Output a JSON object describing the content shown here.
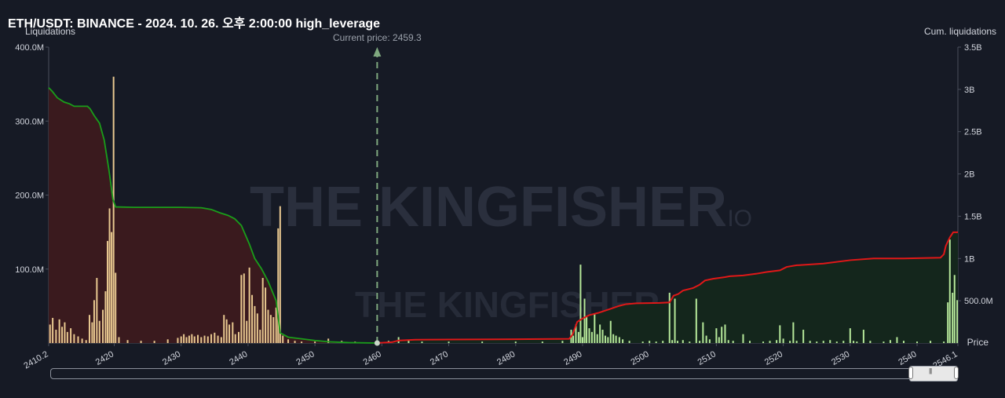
{
  "title": "ETH/USDT: BINANCE - 2024. 10. 26. 오후 2:00:00 high_leverage",
  "watermark": {
    "brand": "THE KINGFISHER",
    "suffix": ".IO"
  },
  "colors": {
    "background": "#161a25",
    "short_cum_line": "#1a9e1a",
    "short_cum_fill": "#3a1a1e",
    "long_cum_line": "#e01818",
    "long_cum_fill": "#14261c",
    "bar_left": "#e8c890",
    "bar_right": "#b6e89a",
    "current_price_line": "#7fa87f"
  },
  "chart_data": {
    "type": "bar",
    "title": "ETH/USDT: BINANCE - 2024. 10. 26. 오후 2:00:00 high_leverage",
    "ylabel_left": "Liquidations",
    "ylabel_right": "Cum. liquidations",
    "xlabel": "Price",
    "xlim": [
      2410.2,
      2546.1
    ],
    "ylim_left": [
      0,
      400000000
    ],
    "ylim_right": [
      0,
      3500000000
    ],
    "x_ticks": [
      "2410.2",
      "2420",
      "2430",
      "2440",
      "2450",
      "2460",
      "2470",
      "2480",
      "2490",
      "2500",
      "2510",
      "2520",
      "2530",
      "2540",
      "2546.1"
    ],
    "y_ticks_left": [
      "400.0M",
      "300.0M",
      "200.0M",
      "100.0M"
    ],
    "y_ticks_right": [
      "3.5B",
      "3B",
      "2.5B",
      "2B",
      "1.5B",
      "1B",
      "500.0M"
    ],
    "current_price": 2459.3,
    "current_price_label": "Current price: 2459.3",
    "bars_below_price": [
      [
        2410.4,
        25000000
      ],
      [
        2410.8,
        34000000
      ],
      [
        2411.3,
        18000000
      ],
      [
        2411.8,
        32000000
      ],
      [
        2412.2,
        22000000
      ],
      [
        2412.6,
        28000000
      ],
      [
        2413.0,
        15000000
      ],
      [
        2413.5,
        20000000
      ],
      [
        2414.0,
        12000000
      ],
      [
        2414.6,
        9000000
      ],
      [
        2415.2,
        6000000
      ],
      [
        2415.8,
        4000000
      ],
      [
        2416.3,
        38000000
      ],
      [
        2416.7,
        28000000
      ],
      [
        2417.0,
        58000000
      ],
      [
        2417.4,
        88000000
      ],
      [
        2417.8,
        30000000
      ],
      [
        2418.3,
        45000000
      ],
      [
        2418.7,
        70000000
      ],
      [
        2419.0,
        138000000
      ],
      [
        2419.3,
        182000000
      ],
      [
        2419.6,
        150000000
      ],
      [
        2419.9,
        360000000
      ],
      [
        2420.2,
        95000000
      ],
      [
        2420.7,
        8000000
      ],
      [
        2422.0,
        4000000
      ],
      [
        2424.0,
        3000000
      ],
      [
        2426.0,
        3000000
      ],
      [
        2428.0,
        5000000
      ],
      [
        2429.5,
        7000000
      ],
      [
        2430.0,
        9000000
      ],
      [
        2430.4,
        12000000
      ],
      [
        2430.8,
        8000000
      ],
      [
        2431.2,
        10000000
      ],
      [
        2431.6,
        12000000
      ],
      [
        2432.0,
        9000000
      ],
      [
        2432.5,
        11000000
      ],
      [
        2433.0,
        8000000
      ],
      [
        2433.5,
        10000000
      ],
      [
        2434.0,
        9000000
      ],
      [
        2434.5,
        12000000
      ],
      [
        2435.0,
        14000000
      ],
      [
        2435.5,
        10000000
      ],
      [
        2436.0,
        8000000
      ],
      [
        2436.4,
        38000000
      ],
      [
        2436.8,
        32000000
      ],
      [
        2437.2,
        25000000
      ],
      [
        2437.7,
        28000000
      ],
      [
        2438.1,
        12000000
      ],
      [
        2438.6,
        15000000
      ],
      [
        2439.0,
        92000000
      ],
      [
        2439.4,
        94000000
      ],
      [
        2439.8,
        30000000
      ],
      [
        2440.2,
        102000000
      ],
      [
        2440.6,
        65000000
      ],
      [
        2441.0,
        50000000
      ],
      [
        2441.4,
        40000000
      ],
      [
        2441.8,
        18000000
      ],
      [
        2442.2,
        88000000
      ],
      [
        2442.6,
        75000000
      ],
      [
        2443.0,
        45000000
      ],
      [
        2443.4,
        38000000
      ],
      [
        2443.8,
        35000000
      ],
      [
        2444.2,
        48000000
      ],
      [
        2444.5,
        155000000
      ],
      [
        2444.8,
        185000000
      ],
      [
        2445.2,
        10000000
      ],
      [
        2446.0,
        5000000
      ],
      [
        2447.0,
        3000000
      ],
      [
        2448.0,
        2000000
      ],
      [
        2450.0,
        2000000
      ],
      [
        2452.0,
        6000000
      ],
      [
        2454.0,
        3000000
      ],
      [
        2456.0,
        2000000
      ]
    ],
    "bars_above_price": [
      [
        2461.0,
        3000000
      ],
      [
        2462.5,
        8000000
      ],
      [
        2464.0,
        4000000
      ],
      [
        2466.0,
        2000000
      ],
      [
        2470.0,
        2000000
      ],
      [
        2475.0,
        2000000
      ],
      [
        2480.0,
        2000000
      ],
      [
        2484.0,
        2000000
      ],
      [
        2487.0,
        3000000
      ],
      [
        2488.3,
        18000000
      ],
      [
        2488.6,
        10000000
      ],
      [
        2489.0,
        25000000
      ],
      [
        2489.4,
        15000000
      ],
      [
        2489.7,
        106000000
      ],
      [
        2490.0,
        8000000
      ],
      [
        2490.3,
        60000000
      ],
      [
        2490.6,
        35000000
      ],
      [
        2491.0,
        20000000
      ],
      [
        2491.4,
        15000000
      ],
      [
        2491.8,
        40000000
      ],
      [
        2492.2,
        12000000
      ],
      [
        2492.6,
        25000000
      ],
      [
        2493.0,
        18000000
      ],
      [
        2493.4,
        10000000
      ],
      [
        2493.8,
        8000000
      ],
      [
        2494.2,
        30000000
      ],
      [
        2494.6,
        12000000
      ],
      [
        2495.0,
        10000000
      ],
      [
        2495.5,
        8000000
      ],
      [
        2496.0,
        5000000
      ],
      [
        2497.0,
        3000000
      ],
      [
        2499.0,
        2000000
      ],
      [
        2500.0,
        3000000
      ],
      [
        2501.0,
        2000000
      ],
      [
        2502.0,
        3000000
      ],
      [
        2503.0,
        68000000
      ],
      [
        2503.4,
        4000000
      ],
      [
        2503.8,
        60000000
      ],
      [
        2504.2,
        3000000
      ],
      [
        2505.0,
        4000000
      ],
      [
        2506.0,
        2000000
      ],
      [
        2507.0,
        60000000
      ],
      [
        2507.5,
        3000000
      ],
      [
        2508.0,
        28000000
      ],
      [
        2508.5,
        10000000
      ],
      [
        2509.0,
        5000000
      ],
      [
        2510.0,
        20000000
      ],
      [
        2510.4,
        8000000
      ],
      [
        2510.8,
        22000000
      ],
      [
        2511.3,
        25000000
      ],
      [
        2511.8,
        4000000
      ],
      [
        2512.5,
        3000000
      ],
      [
        2514.0,
        12000000
      ],
      [
        2515.0,
        3000000
      ],
      [
        2517.0,
        2000000
      ],
      [
        2518.0,
        3000000
      ],
      [
        2519.0,
        4000000
      ],
      [
        2519.5,
        24000000
      ],
      [
        2520.0,
        6000000
      ],
      [
        2521.0,
        3000000
      ],
      [
        2521.5,
        28000000
      ],
      [
        2522.0,
        3000000
      ],
      [
        2523.0,
        18000000
      ],
      [
        2524.0,
        3000000
      ],
      [
        2525.0,
        2000000
      ],
      [
        2526.0,
        3000000
      ],
      [
        2527.0,
        4000000
      ],
      [
        2528.0,
        2000000
      ],
      [
        2529.0,
        3000000
      ],
      [
        2530.0,
        20000000
      ],
      [
        2530.5,
        3000000
      ],
      [
        2531.0,
        2000000
      ],
      [
        2532.0,
        18000000
      ],
      [
        2533.0,
        3000000
      ],
      [
        2535.0,
        2000000
      ],
      [
        2536.0,
        4000000
      ],
      [
        2537.0,
        8000000
      ],
      [
        2538.0,
        3000000
      ],
      [
        2540.0,
        2000000
      ],
      [
        2542.0,
        3000000
      ],
      [
        2544.0,
        2000000
      ],
      [
        2544.6,
        55000000
      ],
      [
        2544.9,
        140000000
      ],
      [
        2545.3,
        68000000
      ],
      [
        2545.6,
        92000000
      ],
      [
        2546.0,
        58000000
      ]
    ],
    "cumulative_short": [
      [
        2410.2,
        3020000000
      ],
      [
        2410.7,
        2980000000
      ],
      [
        2411.5,
        2900000000
      ],
      [
        2412.5,
        2850000000
      ],
      [
        2413.3,
        2830000000
      ],
      [
        2414.0,
        2800000000
      ],
      [
        2416.0,
        2800000000
      ],
      [
        2416.4,
        2770000000
      ],
      [
        2417.0,
        2690000000
      ],
      [
        2417.8,
        2600000000
      ],
      [
        2418.5,
        2400000000
      ],
      [
        2419.2,
        2050000000
      ],
      [
        2419.8,
        1700000000
      ],
      [
        2420.2,
        1610000000
      ],
      [
        2423.0,
        1605000000
      ],
      [
        2426.0,
        1605000000
      ],
      [
        2430.0,
        1605000000
      ],
      [
        2433.0,
        1600000000
      ],
      [
        2434.5,
        1580000000
      ],
      [
        2435.8,
        1540000000
      ],
      [
        2437.0,
        1510000000
      ],
      [
        2438.0,
        1470000000
      ],
      [
        2439.0,
        1390000000
      ],
      [
        2440.2,
        1170000000
      ],
      [
        2441.0,
        1000000000
      ],
      [
        2442.0,
        880000000
      ],
      [
        2443.0,
        730000000
      ],
      [
        2444.2,
        500000000
      ],
      [
        2444.8,
        120000000
      ],
      [
        2446.0,
        70000000
      ],
      [
        2448.0,
        50000000
      ],
      [
        2450.0,
        30000000
      ],
      [
        2452.0,
        15000000
      ],
      [
        2455.0,
        5000000
      ],
      [
        2459.3,
        0
      ]
    ],
    "cumulative_long": [
      [
        2459.3,
        0
      ],
      [
        2461.5,
        10000000
      ],
      [
        2462.5,
        30000000
      ],
      [
        2465.0,
        40000000
      ],
      [
        2470.0,
        42000000
      ],
      [
        2480.0,
        45000000
      ],
      [
        2488.0,
        50000000
      ],
      [
        2488.5,
        100000000
      ],
      [
        2489.2,
        250000000
      ],
      [
        2490.0,
        290000000
      ],
      [
        2491.0,
        330000000
      ],
      [
        2492.5,
        360000000
      ],
      [
        2494.0,
        400000000
      ],
      [
        2495.5,
        440000000
      ],
      [
        2496.5,
        460000000
      ],
      [
        2498.0,
        470000000
      ],
      [
        2501.5,
        475000000
      ],
      [
        2503.0,
        480000000
      ],
      [
        2503.6,
        560000000
      ],
      [
        2504.3,
        580000000
      ],
      [
        2505.0,
        620000000
      ],
      [
        2506.5,
        650000000
      ],
      [
        2507.5,
        690000000
      ],
      [
        2508.3,
        740000000
      ],
      [
        2509.5,
        760000000
      ],
      [
        2511.3,
        780000000
      ],
      [
        2512.0,
        790000000
      ],
      [
        2514.0,
        800000000
      ],
      [
        2516.0,
        820000000
      ],
      [
        2517.5,
        840000000
      ],
      [
        2519.5,
        860000000
      ],
      [
        2520.5,
        900000000
      ],
      [
        2522.0,
        920000000
      ],
      [
        2526.0,
        940000000
      ],
      [
        2530.0,
        980000000
      ],
      [
        2533.5,
        1000000000
      ],
      [
        2538.0,
        1000000000
      ],
      [
        2543.5,
        1010000000
      ],
      [
        2544.0,
        1050000000
      ],
      [
        2544.3,
        1150000000
      ],
      [
        2544.9,
        1250000000
      ],
      [
        2545.4,
        1310000000
      ],
      [
        2546.1,
        1310000000
      ]
    ]
  }
}
